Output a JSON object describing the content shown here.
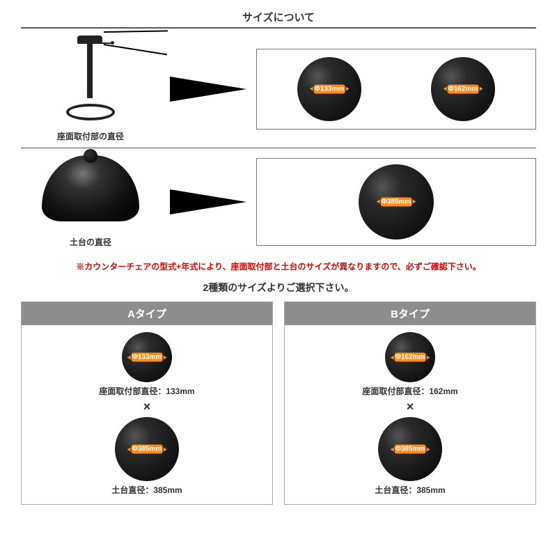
{
  "title": "サイズについて",
  "section1": {
    "left_label": "座面取付部の直径",
    "dims": [
      "Φ133mm",
      "Φ162mm"
    ]
  },
  "section2": {
    "left_label": "土台の直径",
    "dim": "Φ385mm"
  },
  "warning": "※カウンターチェアの型式+年式により、座面取付部と土台のサイズが異なりますので、必ずご確認下さい。",
  "choose_heading": "2種類のサイズよりご選択下さい。",
  "types": [
    {
      "name": "Aタイプ",
      "top_dim": "Φ133mm",
      "top_label": "座面取付部直径：133mm",
      "base_dim": "Φ385mm",
      "base_label": "土台直径：385mm"
    },
    {
      "name": "Bタイプ",
      "top_dim": "Φ162mm",
      "top_label": "座面取付部直径：162mm",
      "base_dim": "Φ385mm",
      "base_label": "土台直径：385mm"
    }
  ],
  "multiply_glyph": "×",
  "colors": {
    "accent": "#ff8c1a",
    "warning": "#e60000",
    "type_header_bg": "#8d8d8d"
  }
}
